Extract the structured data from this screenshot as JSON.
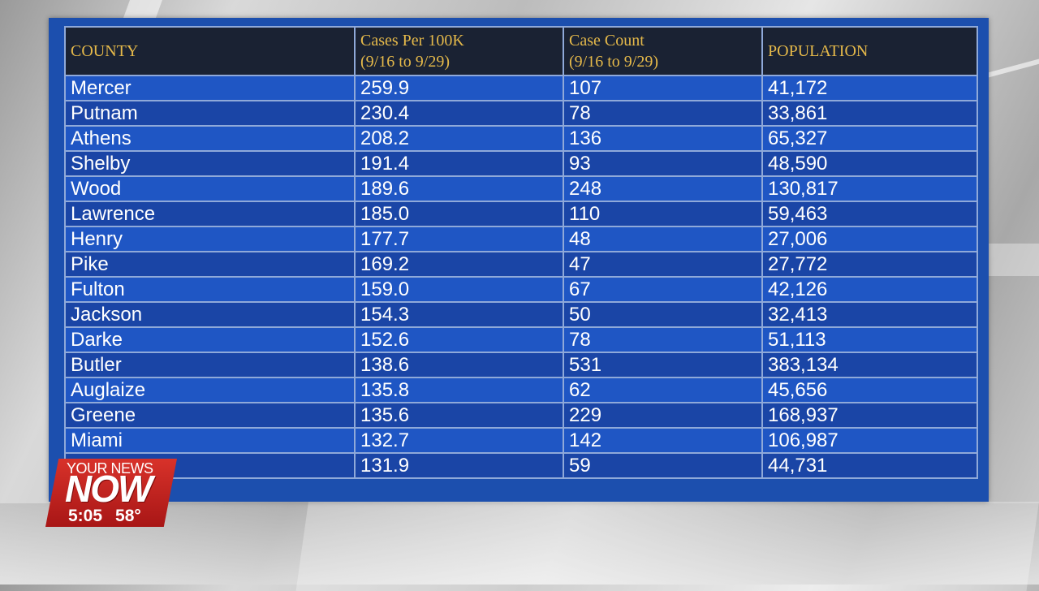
{
  "table": {
    "headers": [
      {
        "line1": "COUNTY",
        "line2": ""
      },
      {
        "line1": "Cases Per 100K",
        "line2": "(9/16 to 9/29)"
      },
      {
        "line1": "Case Count",
        "line2": "(9/16 to 9/29)"
      },
      {
        "line1": "POPULATION",
        "line2": ""
      }
    ],
    "rows": [
      [
        "Mercer",
        "259.9",
        "107",
        "41,172"
      ],
      [
        "Putnam",
        "230.4",
        "78",
        "33,861"
      ],
      [
        "Athens",
        "208.2",
        "136",
        "65,327"
      ],
      [
        "Shelby",
        "191.4",
        "93",
        "48,590"
      ],
      [
        "Wood",
        "189.6",
        "248",
        "130,817"
      ],
      [
        "Lawrence",
        "185.0",
        "110",
        "59,463"
      ],
      [
        "Henry",
        "177.7",
        "48",
        "27,006"
      ],
      [
        "Pike",
        "169.2",
        "47",
        "27,772"
      ],
      [
        "Fulton",
        "159.0",
        "67",
        "42,126"
      ],
      [
        "Jackson",
        "154.3",
        "50",
        "32,413"
      ],
      [
        "Darke",
        "152.6",
        "78",
        "51,113"
      ],
      [
        "Butler",
        "138.6",
        "531",
        "383,134"
      ],
      [
        "Auglaize",
        "135.8",
        "62",
        "45,656"
      ],
      [
        "Greene",
        "135.6",
        "229",
        "168,937"
      ],
      [
        "Miami",
        "132.7",
        "142",
        "106,987"
      ],
      [
        "",
        "131.9",
        "59",
        "44,731"
      ]
    ]
  },
  "logo": {
    "line1": "YOUR NEWS",
    "line2": "NOW",
    "time": "5:05",
    "temperature": "58°"
  },
  "colors": {
    "header_bg": "#1a2233",
    "header_text": "#e5b94a",
    "row_light": "#1f56c4",
    "row_dark": "#1a45a6",
    "logo_red": "#c82222"
  }
}
